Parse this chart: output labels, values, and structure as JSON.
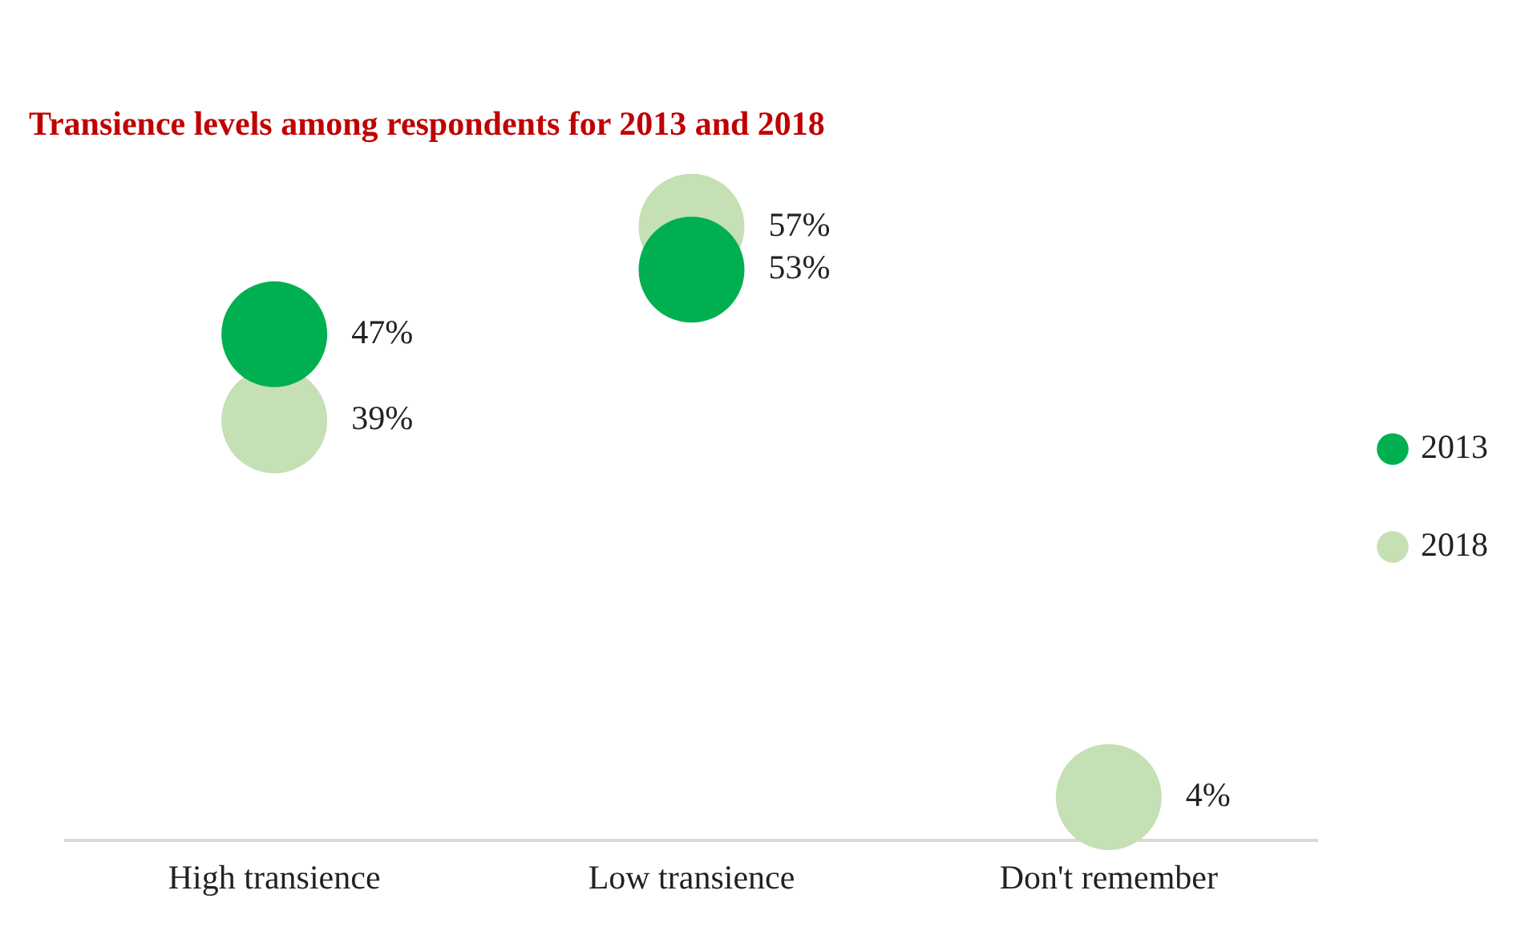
{
  "chart_data": {
    "type": "scatter",
    "title": "Transience levels among respondents for 2013 and 2018",
    "categories": [
      "High transience",
      "Low transience",
      "Don't remember"
    ],
    "series": [
      {
        "name": "2013",
        "color": "#00b050",
        "values": [
          47,
          53,
          null
        ],
        "value_labels": [
          "47%",
          "53%",
          null
        ]
      },
      {
        "name": "2018",
        "color": "#c5e0b4",
        "values": [
          39,
          57,
          4
        ],
        "value_labels": [
          "39%",
          "57%",
          "4%"
        ]
      }
    ],
    "tick_labels": "x",
    "grid": false,
    "legend": "right",
    "marker": "circle"
  }
}
